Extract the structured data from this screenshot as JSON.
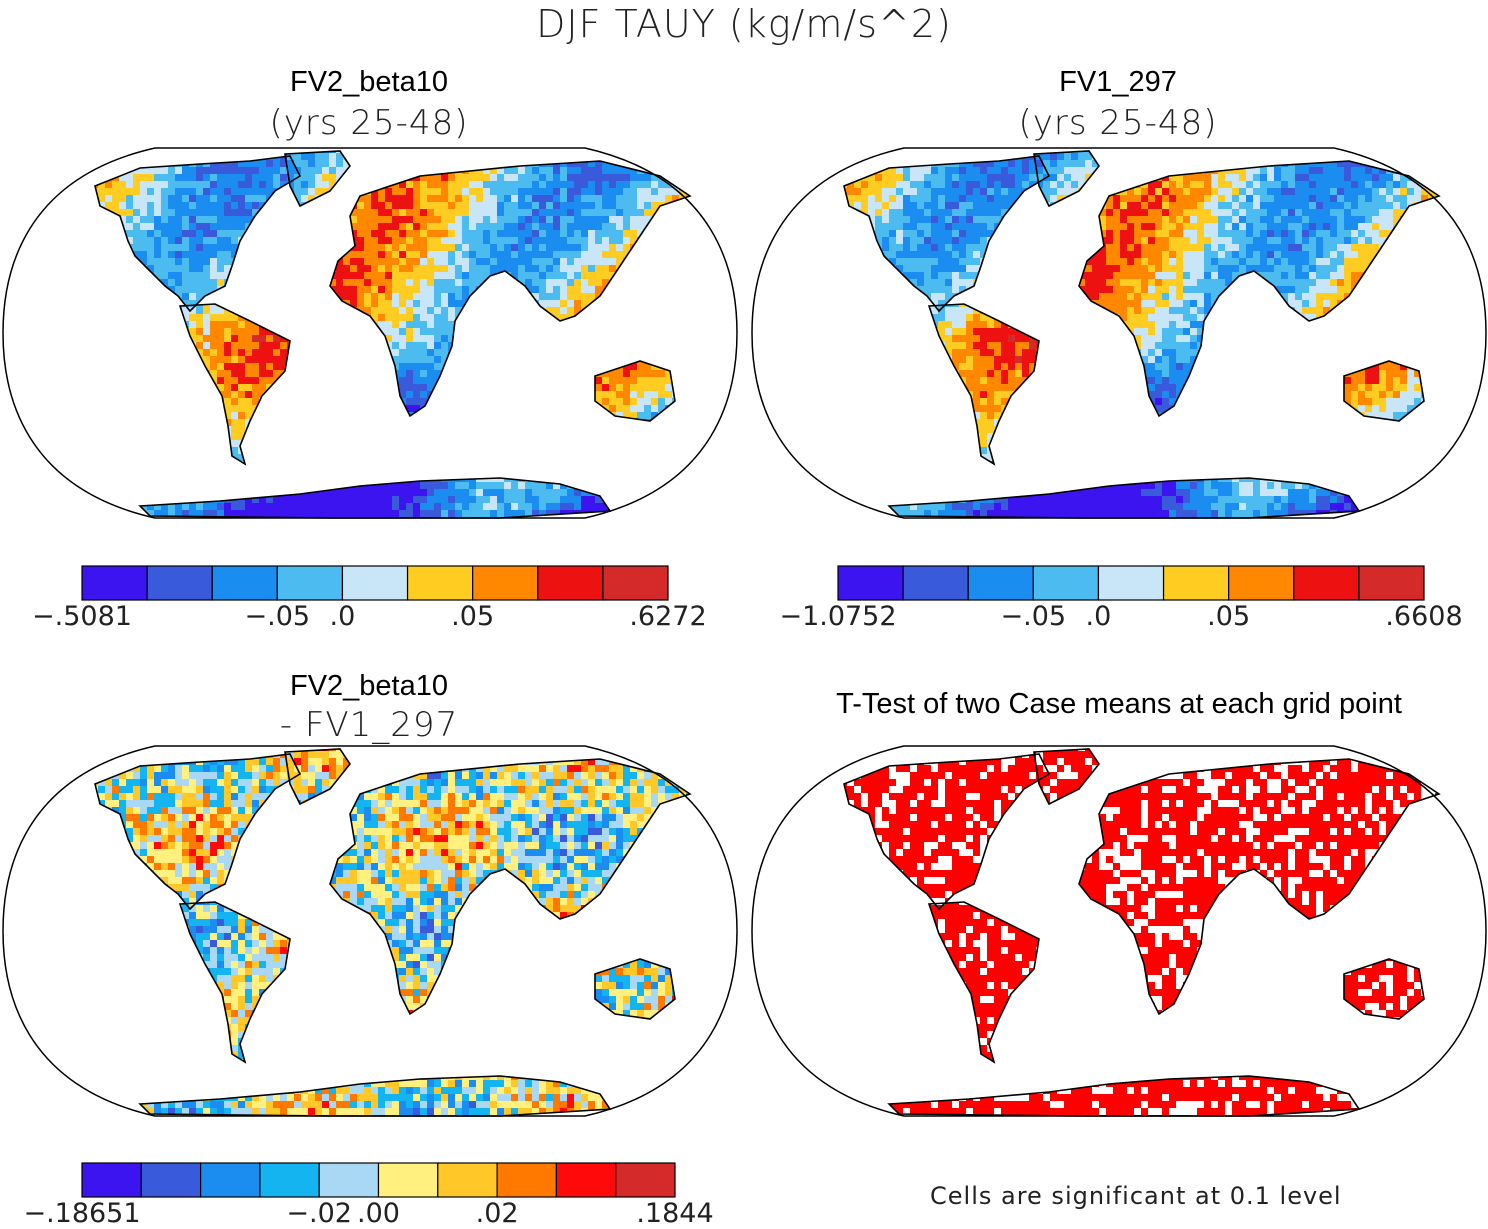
{
  "figure": {
    "title": "DJF TAUY (kg/m/s^2)"
  },
  "panels": [
    {
      "title": "FV2_beta10",
      "subtitle": "(yrs 25-48)",
      "colorbar": {
        "colors": [
          "#3b14f0",
          "#3a5adc",
          "#1b8cf0",
          "#4cbcf0",
          "#c8e6f8",
          "#ffcc22",
          "#ff8800",
          "#ee1111",
          "#d42a2a"
        ],
        "labels": [
          "-.5081",
          "-.05",
          ".0",
          ".05",
          ".6272"
        ]
      }
    },
    {
      "title": "FV1_297",
      "subtitle": "(yrs 25-48)",
      "colorbar": {
        "colors": [
          "#3b14f0",
          "#3a5adc",
          "#1b8cf0",
          "#4cbcf0",
          "#c8e6f8",
          "#ffcc22",
          "#ff8800",
          "#ee1111",
          "#d42a2a"
        ],
        "labels": [
          "-1.0752",
          "-.05",
          ".0",
          ".05",
          ".6608"
        ]
      }
    },
    {
      "title": "FV2_beta10",
      "subtitle": "- FV1_297",
      "colorbar": {
        "colors": [
          "#3b14f0",
          "#3a5adc",
          "#1b8cf0",
          "#14b4f0",
          "#a8d8f4",
          "#fff080",
          "#ffc828",
          "#ff7800",
          "#ff0a0a",
          "#d42a2a"
        ],
        "labels": [
          "-.18651",
          "-.02",
          ".00",
          ".02",
          ".1844"
        ]
      }
    },
    {
      "title": "T-Test of two Case means at each grid point",
      "note": "Cells are significant at 0.1 level",
      "significant_color": "#ff0000"
    }
  ],
  "chart_data": [
    {
      "type": "heatmap",
      "title": "FV2_beta10 (yrs 25-48)",
      "projection": "Robinson",
      "variable": "DJF TAUY (kg/m/s^2)",
      "range": [
        -0.5081,
        0.6272
      ],
      "colorbar_ticks": [
        -0.5081,
        -0.05,
        0.0,
        0.05,
        0.6272
      ],
      "bins": 9
    },
    {
      "type": "heatmap",
      "title": "FV1_297 (yrs 25-48)",
      "projection": "Robinson",
      "variable": "DJF TAUY (kg/m/s^2)",
      "range": [
        -1.0752,
        0.6608
      ],
      "colorbar_ticks": [
        -1.0752,
        -0.05,
        0.0,
        0.05,
        0.6608
      ],
      "bins": 9
    },
    {
      "type": "heatmap",
      "title": "FV2_beta10 - FV1_297",
      "projection": "Robinson",
      "range": [
        -0.18651,
        0.1844
      ],
      "colorbar_ticks": [
        -0.18651,
        -0.02,
        0.0,
        0.02,
        0.1844
      ],
      "bins": 10
    },
    {
      "type": "heatmap",
      "title": "T-Test of two Case means at each grid point",
      "projection": "Robinson",
      "significance_level": 0.1
    }
  ]
}
